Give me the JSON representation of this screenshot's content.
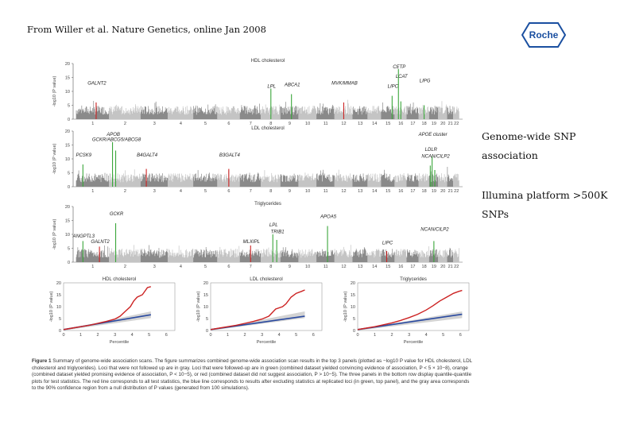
{
  "header": {
    "citation": "From Willer et al. Nature Genetics, online Jan 2008"
  },
  "logo": {
    "text": "Roche",
    "color": "#1a4fa0"
  },
  "side_notes": [
    {
      "text": "Genome-wide SNP association"
    },
    {
      "text": "Illumina platform >500K SNPs"
    }
  ],
  "manhattan_panels": [
    {
      "title": "HDL cholesterol",
      "genes": [
        "GALNT2",
        "LPL",
        "ABCA1",
        "MVK/MMAB",
        "LIPC",
        "LCAT",
        "LIPG",
        "CETP"
      ]
    },
    {
      "title": "LDL cholesterol",
      "genes": [
        "APOB",
        "GCKR/ABCG5/ABCG8",
        "PCSK9",
        "B4GALT4",
        "B3GALT4",
        "APOE cluster",
        "LDLR",
        "NCAN/CILP2"
      ]
    },
    {
      "title": "Triglycerides",
      "genes": [
        "GCKR",
        "ANGPTL3",
        "GALNT2",
        "LPL",
        "TRIB1",
        "MLXIPL",
        "APOA5",
        "NCAN/CILP2",
        "LIPC"
      ]
    }
  ],
  "qq_panels": [
    {
      "title": "HDL cholesterol",
      "xlabel": "Percentile"
    },
    {
      "title": "LDL cholesterol",
      "xlabel": "Percentile"
    },
    {
      "title": "Triglycerides",
      "xlabel": "Percentile"
    }
  ],
  "axis": {
    "ylabel": "-log10 (P value)",
    "y_ticks": [
      "0",
      "5",
      "10",
      "15",
      "20"
    ],
    "chromosomes": [
      "1",
      "2",
      "3",
      "4",
      "5",
      "6",
      "7",
      "8",
      "9",
      "10",
      "11",
      "12",
      "13",
      "14",
      "15",
      "16",
      "17",
      "18",
      "19",
      "20",
      "21",
      "22"
    ],
    "qq_x_ticks": [
      "0",
      "1",
      "2",
      "3",
      "4",
      "5",
      "6"
    ],
    "qq_y_ticks": [
      "0",
      "5",
      "10",
      "15",
      "20"
    ]
  },
  "caption": {
    "label": "Figure 1",
    "text": "Summary of genome-wide association scans. The figure summarizes combined genome-wide association scan results in the top 3 panels (plotted as −log10 P value for HDL cholesterol, LDL cholesterol and triglycerides). Loci that were not followed up are in gray. Loci that were followed-up are in green (combined dataset yielded convincing evidence of association, P < 5 × 10−8), orange (combined dataset yielded promising evidence of association, P < 10−5), or red (combined dataset did not suggest association, P > 10−5). The three panels in the bottom row display quantile-quantile plots for test statistics. The red line corresponds to all test statistics, the blue line corresponds to results after excluding statistics at replicated loci (in green, top panel), and the gray area corresponds to the 90% confidence region from a null distribution of P values (generated from 100 simulations)."
  },
  "colors": {
    "gray_dark": "#8a8a8a",
    "gray_light": "#c4c4c4",
    "green": "#3aa63a",
    "red": "#cc2222",
    "blue": "#2a4aa0",
    "orange": "#e08a20"
  }
}
